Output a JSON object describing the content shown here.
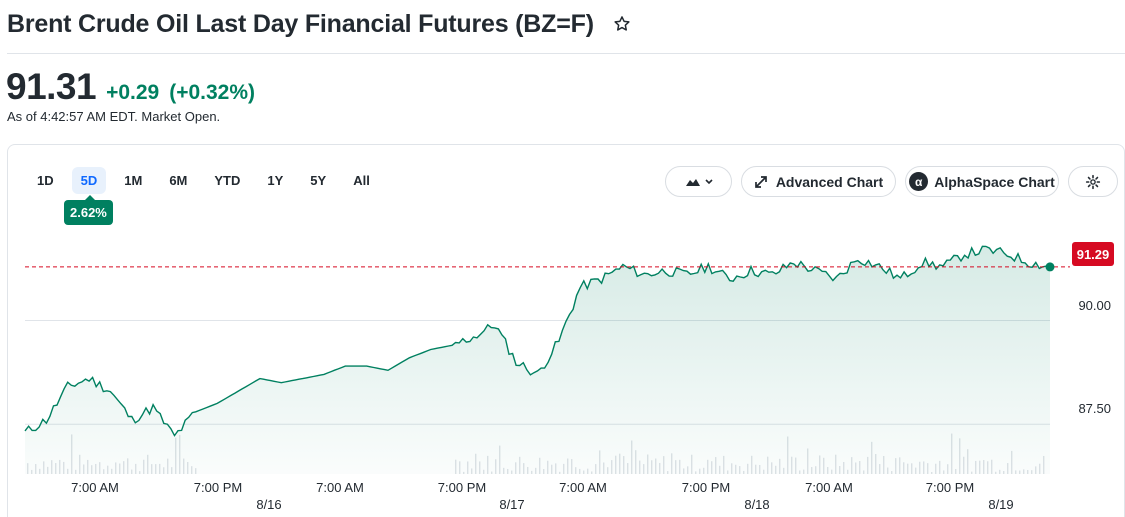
{
  "header": {
    "title": "Brent Crude Oil Last Day Financial Futures (BZ=F)",
    "star_icon": "star-outline-icon"
  },
  "quote": {
    "price": "91.31",
    "change": "+0.29",
    "change_percent": "(+0.32%)",
    "as_of": "As of 4:42:57 AM EDT. Market Open.",
    "positive_color": "#008060"
  },
  "toolbar": {
    "ranges": [
      "1D",
      "5D",
      "1M",
      "6M",
      "YTD",
      "1Y",
      "5Y",
      "All"
    ],
    "active_range": "5D",
    "range_change": "2.62%",
    "chart_type_icon": "mountain-chart-icon",
    "advanced_chart_label": "Advanced Chart",
    "alphaspace_chart_label": "AlphaSpace Chart",
    "alphaspace_logo": "α",
    "settings_icon": "gear-icon"
  },
  "chart_data": {
    "type": "area",
    "ylim": [
      86.3,
      92.3
    ],
    "yticks": [
      "90.00",
      "87.50"
    ],
    "current_price_label": "91.29",
    "current_price": 91.29,
    "line_color": "#008060",
    "reference_line_color": "#d60a22",
    "x_tick_labels": [
      "7:00 AM",
      "7:00 PM",
      "7:00 AM",
      "7:00 PM",
      "7:00 AM",
      "7:00 PM",
      "7:00 AM",
      "7:00 PM"
    ],
    "x_date_labels": [
      "8/16",
      "8/17",
      "8/18",
      "8/19"
    ],
    "series": [
      {
        "values": [
          87.3,
          87.6,
          88.4,
          88.6,
          88.3,
          87.6,
          87.9,
          87.2,
          87.8,
          88.0,
          88.3,
          88.6,
          88.5,
          88.6,
          88.7,
          88.9,
          88.9,
          88.8,
          89.1,
          89.3,
          89.4,
          89.6,
          89.9,
          89.0,
          88.7,
          89.5,
          90.8,
          91.0,
          91.3,
          91.1,
          91.2,
          91.1,
          91.3,
          91.0,
          91.2,
          91.1,
          91.4,
          91.2,
          91.0,
          91.5,
          91.3,
          91.0,
          91.4,
          91.3,
          91.6,
          91.7,
          91.6,
          91.4,
          91.29
        ]
      }
    ]
  }
}
